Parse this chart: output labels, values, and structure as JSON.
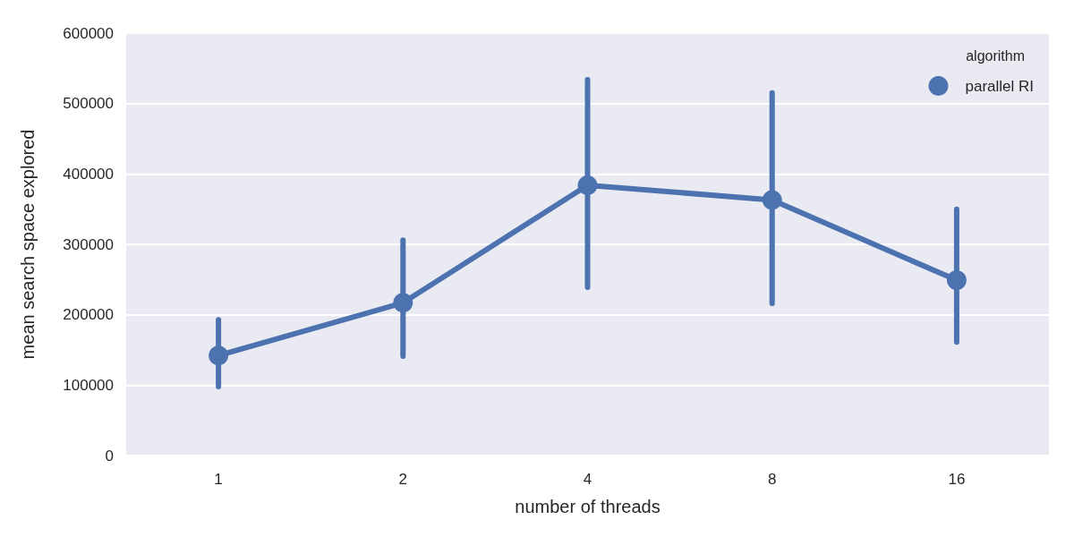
{
  "chart_data": {
    "type": "line",
    "xlabel": "number of threads",
    "ylabel": "mean search space explored",
    "legend_title": "algorithm",
    "categories": [
      "1",
      "2",
      "4",
      "8",
      "16"
    ],
    "series": [
      {
        "name": "parallel RI",
        "color": "#4c72b0",
        "values": [
          142000,
          217000,
          384000,
          363000,
          249000
        ],
        "errors": [
          [
            98000,
            193000
          ],
          [
            141000,
            306000
          ],
          [
            239000,
            534000
          ],
          [
            216000,
            515000
          ],
          [
            161000,
            350000
          ]
        ]
      }
    ],
    "ylim": [
      0,
      600000
    ],
    "yticks": [
      0,
      100000,
      200000,
      300000,
      400000,
      500000,
      600000
    ],
    "grid": "y",
    "legend": "top right",
    "marker": "circle",
    "line_style": "solid"
  }
}
